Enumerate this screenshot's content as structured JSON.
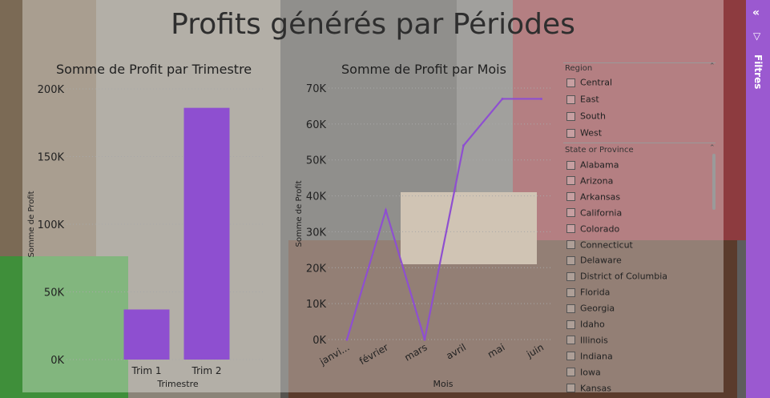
{
  "page_title": "Profits générés par Périodes",
  "colors": {
    "bar": "#8e4fd0",
    "line": "#8e4fd0",
    "filters_panel": "#9b59d0"
  },
  "filters": {
    "label": "Filtres"
  },
  "slicers": {
    "region": {
      "header": "Region",
      "items": [
        "Central",
        "East",
        "South",
        "West"
      ]
    },
    "state": {
      "header": "State or Province",
      "items": [
        "Alabama",
        "Arizona",
        "Arkansas",
        "California",
        "Colorado",
        "Connecticut",
        "Delaware",
        "District of Columbia",
        "Florida",
        "Georgia",
        "Idaho",
        "Illinois",
        "Indiana",
        "Iowa",
        "Kansas"
      ]
    }
  },
  "chart_data": [
    {
      "type": "bar",
      "title": "Somme de Profit par Trimestre",
      "xlabel": "Trimestre",
      "ylabel": "Somme de Profit",
      "categories": [
        "Trim 1",
        "Trim 2"
      ],
      "values": [
        37000,
        186000
      ],
      "ylim": [
        0,
        200000
      ],
      "yticks": [
        0,
        50000,
        100000,
        150000,
        200000
      ],
      "ytick_labels": [
        "0K",
        "50K",
        "100K",
        "150K",
        "200K"
      ],
      "grid": true
    },
    {
      "type": "line",
      "title": "Somme de Profit par Mois",
      "xlabel": "Mois",
      "ylabel": "Somme de Profit",
      "categories": [
        "janvi...",
        "février",
        "mars",
        "avril",
        "mai",
        "juin"
      ],
      "values": [
        0,
        36000,
        0,
        54000,
        67000,
        67000
      ],
      "ylim": [
        0,
        70000
      ],
      "yticks": [
        0,
        10000,
        20000,
        30000,
        40000,
        50000,
        60000,
        70000
      ],
      "ytick_labels": [
        "0K",
        "10K",
        "20K",
        "30K",
        "40K",
        "50K",
        "60K",
        "70K"
      ],
      "grid": true
    }
  ]
}
